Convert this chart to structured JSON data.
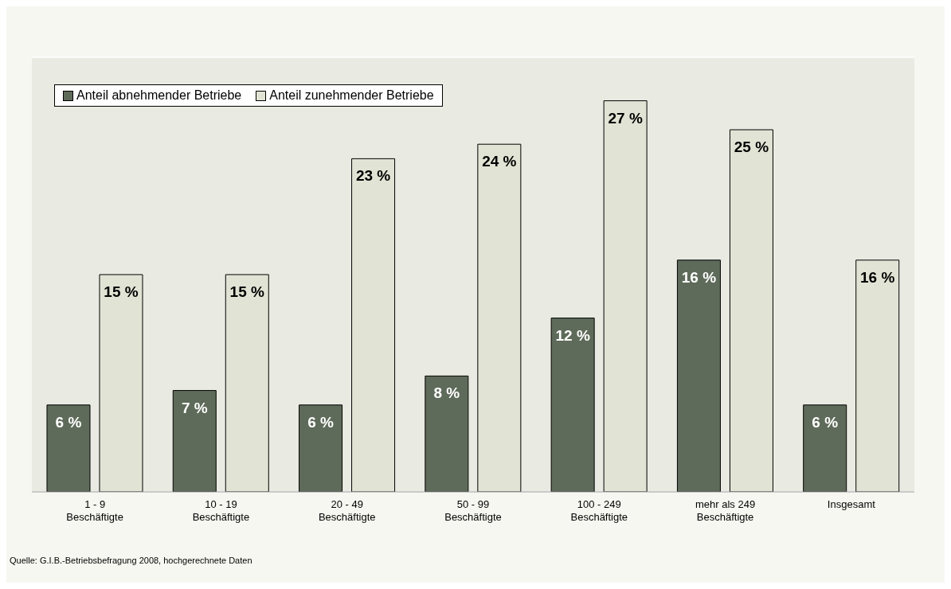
{
  "chart_data": {
    "type": "bar",
    "categories": [
      "1 - 9\nBeschäftigte",
      "10 - 19\nBeschäftigte",
      "20 - 49\nBeschäftigte",
      "50 - 99\nBeschäftigte",
      "100 - 249\nBeschäftigte",
      "mehr als 249\nBeschäftigte",
      "Insgesamt"
    ],
    "series": [
      {
        "name": "Anteil abnehmender Betriebe",
        "color": "#5f6b5a",
        "values": [
          6,
          7,
          6,
          8,
          12,
          16,
          6
        ],
        "value_labels": [
          "6 %",
          "7 %",
          "6 %",
          "8 %",
          "12 %",
          "16 %",
          "6 %"
        ]
      },
      {
        "name": "Anteil zunehmender Betriebe",
        "color": "#e1e3d4",
        "values": [
          15,
          15,
          23,
          24,
          27,
          25,
          16
        ],
        "value_labels": [
          "15 %",
          "15 %",
          "23 %",
          "24 %",
          "27 %",
          "25 %",
          "16 %"
        ]
      }
    ],
    "ylim": [
      0,
      30
    ],
    "grid": "y",
    "legend": "top left",
    "tick_labels": "x",
    "annotations": [
      "Quelle: G.I.B.-Betriebsbefragung 2008, hochgerechnete Daten"
    ]
  }
}
